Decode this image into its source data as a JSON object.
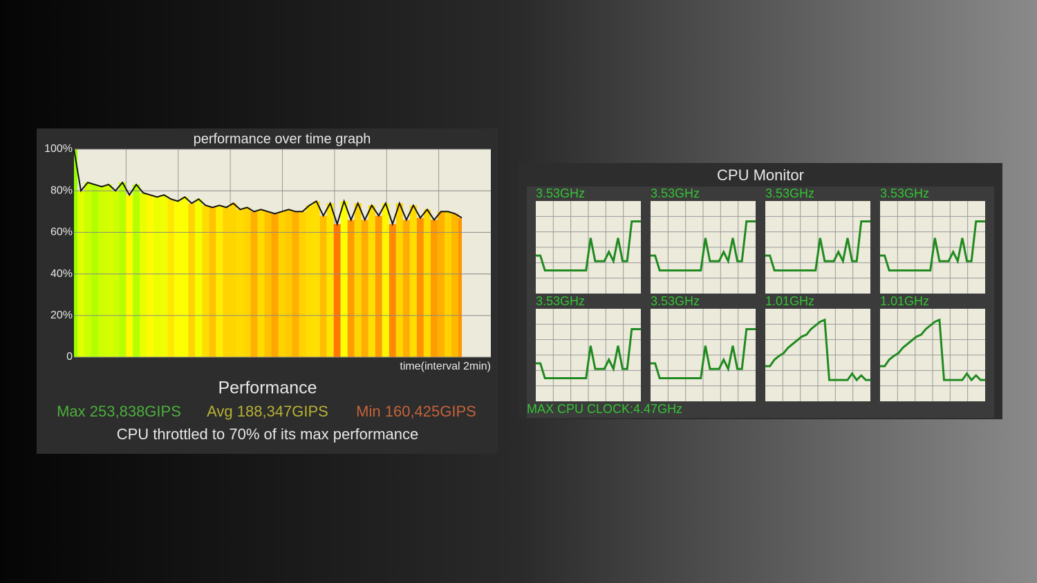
{
  "performance_panel": {
    "chart": {
      "type": "line",
      "title": "performance over time graph",
      "x_label": "time(interval 2min)",
      "ylim": [
        0,
        100
      ],
      "yticks": [
        0,
        {
          "value": 20,
          "label": "20%"
        },
        {
          "value": 40,
          "label": "40%"
        },
        {
          "value": 60,
          "label": "60%"
        },
        {
          "value": 80,
          "label": "80%"
        },
        {
          "value": 100,
          "label": "100%"
        }
      ],
      "values": [
        100,
        80,
        84,
        83,
        82,
        83,
        80,
        84,
        78,
        83,
        79,
        78,
        77,
        78,
        76,
        75,
        77,
        74,
        76,
        73,
        72,
        73,
        72,
        74,
        71,
        72,
        70,
        71,
        70,
        69,
        70,
        71,
        70,
        70,
        73,
        75,
        68,
        74,
        64,
        75,
        66,
        74,
        66,
        73,
        68,
        74,
        64,
        74,
        66,
        73,
        67,
        71,
        66,
        70,
        70,
        69,
        67
      ]
    },
    "summary_title": "Performance",
    "max": "Max 253,838GIPS",
    "avg": "Avg 188,347GIPS",
    "min": "Min 160,425GIPS",
    "note": "CPU throttled to 70% of its max performance"
  },
  "cpu_monitor": {
    "title": "CPU Monitor",
    "ylim": [
      0,
      100
    ],
    "cores": [
      {
        "label": "3.53GHz",
        "values": [
          41,
          41,
          25,
          25,
          25,
          25,
          25,
          25,
          25,
          25,
          25,
          25,
          60,
          35,
          35,
          35,
          45,
          35,
          60,
          35,
          35,
          78,
          78,
          78
        ]
      },
      {
        "label": "3.53GHz",
        "values": [
          41,
          41,
          25,
          25,
          25,
          25,
          25,
          25,
          25,
          25,
          25,
          25,
          60,
          35,
          35,
          35,
          45,
          35,
          60,
          35,
          35,
          78,
          78,
          78
        ]
      },
      {
        "label": "3.53GHz",
        "values": [
          41,
          41,
          25,
          25,
          25,
          25,
          25,
          25,
          25,
          25,
          25,
          25,
          60,
          35,
          35,
          35,
          45,
          35,
          60,
          35,
          35,
          78,
          78,
          78
        ]
      },
      {
        "label": "3.53GHz",
        "values": [
          41,
          41,
          25,
          25,
          25,
          25,
          25,
          25,
          25,
          25,
          25,
          25,
          60,
          35,
          35,
          35,
          45,
          35,
          60,
          35,
          35,
          78,
          78,
          78
        ]
      },
      {
        "label": "3.53GHz",
        "values": [
          41,
          41,
          25,
          25,
          25,
          25,
          25,
          25,
          25,
          25,
          25,
          25,
          60,
          35,
          35,
          35,
          45,
          35,
          60,
          35,
          35,
          78,
          78,
          78
        ]
      },
      {
        "label": "3.53GHz",
        "values": [
          41,
          41,
          25,
          25,
          25,
          25,
          25,
          25,
          25,
          25,
          25,
          25,
          60,
          35,
          35,
          35,
          45,
          35,
          60,
          35,
          35,
          78,
          78,
          78
        ]
      },
      {
        "label": "1.01GHz",
        "values": [
          38,
          38,
          45,
          49,
          52,
          58,
          62,
          66,
          70,
          72,
          78,
          82,
          86,
          88,
          23,
          23,
          23,
          23,
          23,
          30,
          23,
          28,
          23,
          23
        ]
      },
      {
        "label": "1.01GHz",
        "values": [
          38,
          38,
          45,
          49,
          52,
          58,
          62,
          66,
          70,
          72,
          78,
          82,
          86,
          88,
          23,
          23,
          23,
          23,
          23,
          30,
          23,
          28,
          23,
          23
        ]
      }
    ],
    "max_clock": "MAX CPU CLOCK:4.47GHz"
  }
}
